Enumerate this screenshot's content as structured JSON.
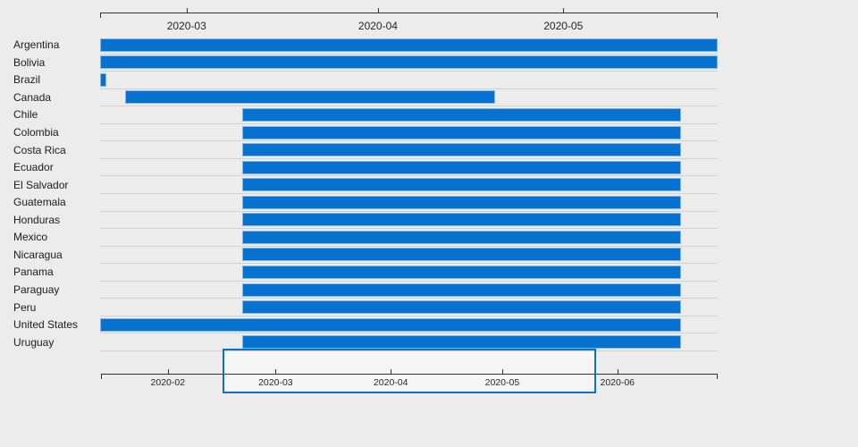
{
  "colors": {
    "background": "#ececec",
    "bar": "#0671ce",
    "bar_stroke": "rgba(255,255,255,0.5)",
    "axis_line": "#333333",
    "tick_label": "#262626",
    "row_label": "#1b1b1b",
    "row_separator": "#d2d2d2",
    "brush_border": "#0b6fd0",
    "brush_fill": "rgba(255,255,255,0.55)"
  },
  "chart_data": {
    "type": "gantt",
    "title": "",
    "rows": [
      {
        "label": "Argentina",
        "start": "2020-02-16",
        "end": "2020-05-26",
        "clipped_start": true,
        "clipped_end": true
      },
      {
        "label": "Bolivia",
        "start": "2020-02-16",
        "end": "2020-05-26",
        "clipped_start": true,
        "clipped_end": true
      },
      {
        "label": "Brazil",
        "start": "2020-02-16",
        "end": "2020-02-17",
        "clipped_start": true,
        "clipped_end": false
      },
      {
        "label": "Canada",
        "start": "2020-02-20",
        "end": "2020-04-20",
        "clipped_start": false,
        "clipped_end": false
      },
      {
        "label": "Chile",
        "start": "2020-03-10",
        "end": "2020-05-20",
        "clipped_start": false,
        "clipped_end": false
      },
      {
        "label": "Colombia",
        "start": "2020-03-10",
        "end": "2020-05-20",
        "clipped_start": false,
        "clipped_end": false
      },
      {
        "label": "Costa Rica",
        "start": "2020-03-10",
        "end": "2020-05-20",
        "clipped_start": false,
        "clipped_end": false
      },
      {
        "label": "Ecuador",
        "start": "2020-03-10",
        "end": "2020-05-20",
        "clipped_start": false,
        "clipped_end": false
      },
      {
        "label": "El Salvador",
        "start": "2020-03-10",
        "end": "2020-05-20",
        "clipped_start": false,
        "clipped_end": false
      },
      {
        "label": "Guatemala",
        "start": "2020-03-10",
        "end": "2020-05-20",
        "clipped_start": false,
        "clipped_end": false
      },
      {
        "label": "Honduras",
        "start": "2020-03-10",
        "end": "2020-05-20",
        "clipped_start": false,
        "clipped_end": false
      },
      {
        "label": "Mexico",
        "start": "2020-03-10",
        "end": "2020-05-20",
        "clipped_start": false,
        "clipped_end": false
      },
      {
        "label": "Nicaragua",
        "start": "2020-03-10",
        "end": "2020-05-20",
        "clipped_start": false,
        "clipped_end": false
      },
      {
        "label": "Panama",
        "start": "2020-03-10",
        "end": "2020-05-20",
        "clipped_start": false,
        "clipped_end": false
      },
      {
        "label": "Paraguay",
        "start": "2020-03-10",
        "end": "2020-05-20",
        "clipped_start": false,
        "clipped_end": false
      },
      {
        "label": "Peru",
        "start": "2020-03-10",
        "end": "2020-05-20",
        "clipped_start": false,
        "clipped_end": false
      },
      {
        "label": "United States",
        "start": "2020-02-16",
        "end": "2020-05-20",
        "clipped_start": true,
        "clipped_end": false
      },
      {
        "label": "Uruguay",
        "start": "2020-03-10",
        "end": "2020-05-20",
        "clipped_start": false,
        "clipped_end": false
      }
    ],
    "detail_axis": {
      "domain_start": "2020-02-16",
      "domain_end": "2020-05-26",
      "ticks": [
        {
          "date": "2020-03-01",
          "label": "2020-03"
        },
        {
          "date": "2020-04-01",
          "label": "2020-04"
        },
        {
          "date": "2020-05-01",
          "label": "2020-05"
        }
      ]
    },
    "overview_axis": {
      "domain_start": "2020-01-14",
      "domain_end": "2020-06-28",
      "ticks": [
        {
          "date": "2020-02-01",
          "label": "2020-02"
        },
        {
          "date": "2020-03-01",
          "label": "2020-03"
        },
        {
          "date": "2020-04-01",
          "label": "2020-04"
        },
        {
          "date": "2020-05-01",
          "label": "2020-05"
        },
        {
          "date": "2020-06-01",
          "label": "2020-06"
        }
      ],
      "selection_start": "2020-02-16",
      "selection_end": "2020-05-26"
    }
  }
}
